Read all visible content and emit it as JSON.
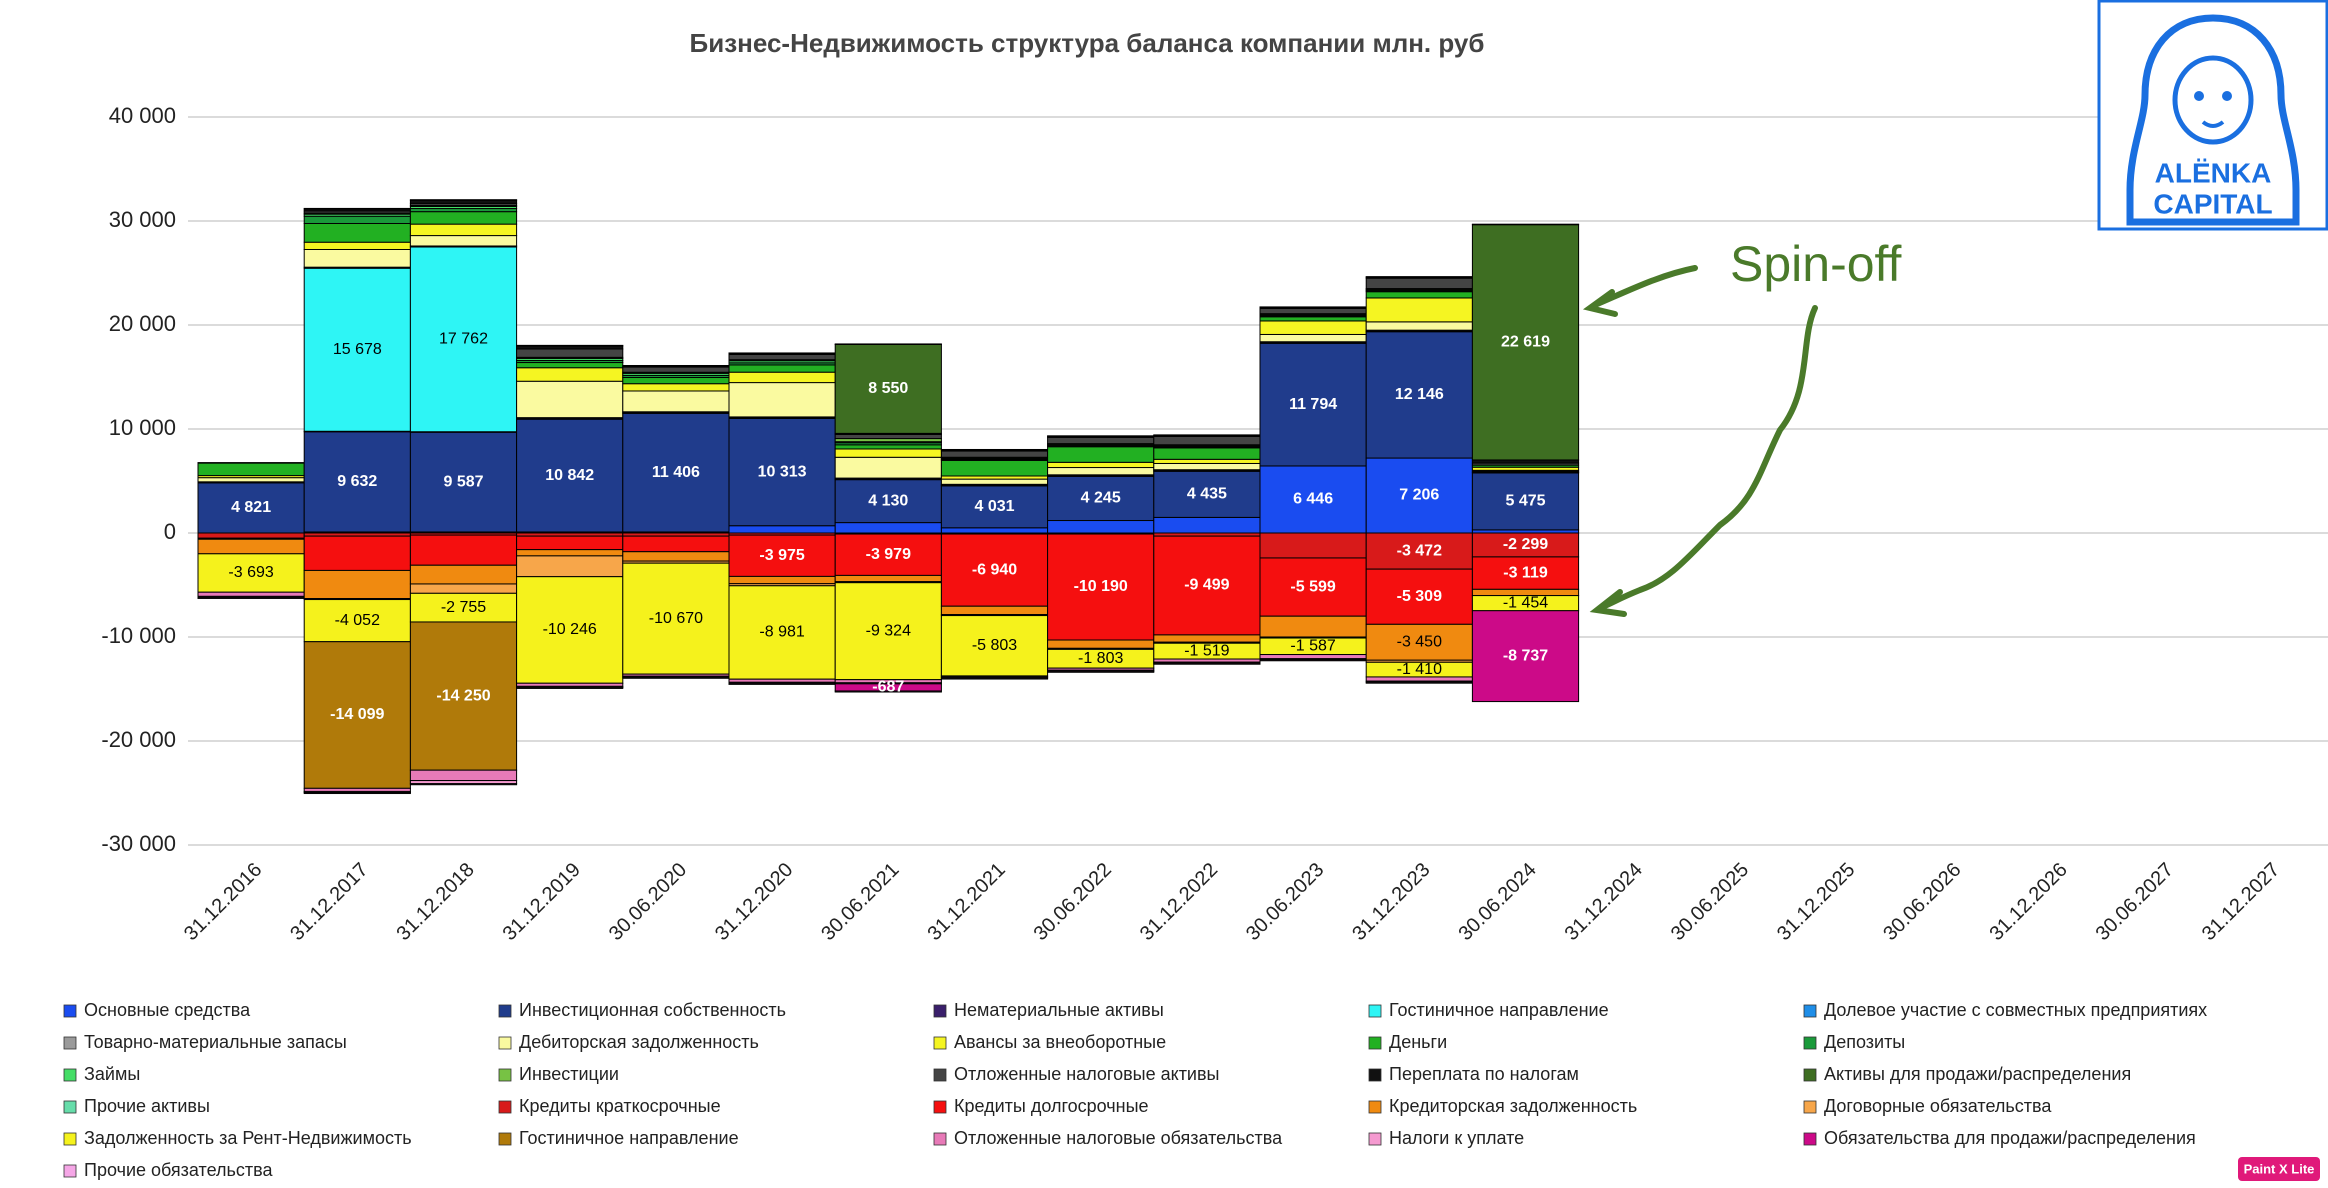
{
  "chart_data": {
    "type": "stacked_bar",
    "title": "Бизнес-Недвижимость структура баланса компании млн. руб",
    "annotations": [
      "Spin-off"
    ],
    "categories": [
      "31.12.2016",
      "31.12.2017",
      "31.12.2018",
      "31.12.2019",
      "30.06.2020",
      "31.12.2020",
      "30.06.2021",
      "31.12.2021",
      "30.06.2022",
      "31.12.2022",
      "30.06.2023",
      "31.12.2023",
      "30.06.2024",
      "31.12.2024",
      "30.06.2025",
      "31.12.2025",
      "30.06.2026",
      "31.12.2026",
      "30.06.2027",
      "31.12.2027"
    ],
    "ylim": [
      -30000,
      40000
    ],
    "yticks": [
      {
        "value": -30000,
        "label": "-30 000"
      },
      {
        "value": -20000,
        "label": "-20 000"
      },
      {
        "value": -10000,
        "label": "-10 000"
      },
      0,
      {
        "value": 10000,
        "label": "10 000"
      },
      {
        "value": 20000,
        "label": "20 000"
      },
      {
        "value": 30000,
        "label": "30 000"
      },
      {
        "value": 40000,
        "label": "40 000"
      }
    ],
    "grid": true,
    "legend": "bottom",
    "series": [
      {
        "name": "Основные средства",
        "color": "#1a4cf0",
        "values": [
          0,
          100,
          100,
          100,
          100,
          700,
          1000,
          500,
          1200,
          1500,
          6446,
          7206,
          300,
          null,
          null,
          null,
          null,
          null,
          null,
          null
        ],
        "value_labels": [
          null,
          null,
          null,
          null,
          null,
          null,
          null,
          null,
          null,
          null,
          "6 446",
          "7 206",
          null,
          null,
          null,
          null,
          null,
          null,
          null,
          null
        ]
      },
      {
        "name": "Инвестиционная собственность",
        "color": "#203c8c",
        "values": [
          4821,
          9632,
          9587,
          10842,
          11406,
          10313,
          4130,
          4031,
          4245,
          4435,
          11794,
          12146,
          5475,
          null,
          null,
          null,
          null,
          null,
          null,
          null
        ],
        "value_labels": [
          "4 821",
          "9 632",
          "9 587",
          "10 842",
          "11 406",
          "10 313",
          "4 130",
          "4 031",
          "4 245",
          "4 435",
          "11 794",
          "12 146",
          "5 475",
          null,
          null,
          null,
          null,
          null,
          null,
          null
        ]
      },
      {
        "name": "Нематериальные активы",
        "color": "#3a1f6b",
        "values": [
          0,
          50,
          50,
          50,
          50,
          50,
          50,
          50,
          50,
          50,
          50,
          50,
          50,
          null,
          null,
          null,
          null,
          null,
          null,
          null
        ]
      },
      {
        "name": "Гостиничное направление",
        "color": "#2ef5f5",
        "values": [
          0,
          15678,
          17762,
          0,
          0,
          0,
          0,
          0,
          0,
          0,
          0,
          0,
          0,
          null,
          null,
          null,
          null,
          null,
          null,
          null
        ],
        "value_labels": [
          null,
          "15 678",
          "17 762",
          null,
          null,
          null,
          null,
          null,
          null,
          null,
          null,
          null,
          null,
          null,
          null,
          null,
          null,
          null,
          null,
          null
        ]
      },
      {
        "name": "Долевое участие с совместных предприятиях",
        "color": "#1f8ee8",
        "values": [
          0,
          0,
          0,
          0,
          0,
          0,
          0,
          0,
          0,
          0,
          0,
          0,
          0,
          null,
          null,
          null,
          null,
          null,
          null,
          null
        ]
      },
      {
        "name": "Товарно-материальные запасы",
        "color": "#9a9a9a",
        "values": [
          100,
          100,
          100,
          100,
          100,
          100,
          100,
          100,
          100,
          100,
          100,
          100,
          100,
          null,
          null,
          null,
          null,
          null,
          null,
          null
        ]
      },
      {
        "name": "Дебиторская задолженность",
        "color": "#fafaa0",
        "values": [
          400,
          1700,
          1000,
          3500,
          2000,
          3300,
          2000,
          500,
          700,
          600,
          700,
          800,
          100,
          null,
          null,
          null,
          null,
          null,
          null,
          null
        ]
      },
      {
        "name": "Авансы за внеоборотные",
        "color": "#f5f522",
        "values": [
          200,
          700,
          1100,
          1300,
          700,
          1000,
          800,
          300,
          500,
          400,
          1300,
          2300,
          300,
          null,
          null,
          null,
          null,
          null,
          null,
          null
        ]
      },
      {
        "name": "Деньги",
        "color": "#22b022",
        "values": [
          1200,
          1800,
          1200,
          500,
          600,
          700,
          400,
          1500,
          1500,
          1100,
          400,
          600,
          200,
          null,
          null,
          null,
          null,
          null,
          null,
          null
        ]
      },
      {
        "name": "Депозиты",
        "color": "#1a9a3a",
        "values": [
          0,
          700,
          300,
          200,
          200,
          200,
          200,
          100,
          100,
          100,
          100,
          100,
          0,
          null,
          null,
          null,
          null,
          null,
          null,
          null
        ]
      },
      {
        "name": "Займы",
        "color": "#44dd66",
        "values": [
          0,
          200,
          200,
          200,
          200,
          200,
          100,
          100,
          100,
          100,
          100,
          100,
          0,
          null,
          null,
          null,
          null,
          null,
          null,
          null
        ]
      },
      {
        "name": "Инвестиции",
        "color": "#77c244",
        "values": [
          0,
          100,
          100,
          100,
          100,
          100,
          300,
          100,
          100,
          100,
          100,
          100,
          0,
          null,
          null,
          null,
          null,
          null,
          null,
          null
        ]
      },
      {
        "name": "Отложенные налоговые активы",
        "color": "#444444",
        "values": [
          0,
          200,
          200,
          800,
          500,
          500,
          400,
          600,
          600,
          800,
          500,
          1000,
          200,
          null,
          null,
          null,
          null,
          null,
          null,
          null
        ]
      },
      {
        "name": "Переплата по налогам",
        "color": "#111111",
        "values": [
          0,
          200,
          300,
          300,
          100,
          100,
          100,
          100,
          100,
          100,
          100,
          100,
          300,
          null,
          null,
          null,
          null,
          null,
          null,
          null
        ]
      },
      {
        "name": "Активы для продажи/распределения",
        "color": "#3e6e22",
        "values": [
          0,
          0,
          0,
          0,
          0,
          0,
          8550,
          0,
          0,
          0,
          0,
          0,
          22619,
          null,
          null,
          null,
          null,
          null,
          null,
          null
        ],
        "value_labels": [
          null,
          null,
          null,
          null,
          null,
          null,
          "8 550",
          null,
          null,
          null,
          null,
          null,
          "22 619",
          null,
          null,
          null,
          null,
          null,
          null,
          null
        ]
      },
      {
        "name": "Прочие активы",
        "color": "#66ddaa",
        "values": [
          50,
          50,
          50,
          50,
          50,
          50,
          50,
          50,
          50,
          50,
          50,
          50,
          50,
          null,
          null,
          null,
          null,
          null,
          null,
          null
        ]
      },
      {
        "name": "Кредиты краткосрочные",
        "color": "#d81a1a",
        "values": [
          -500,
          -300,
          -200,
          -300,
          -300,
          -200,
          -100,
          -100,
          -100,
          -300,
          -2400,
          -3472,
          -2299,
          null,
          null,
          null,
          null,
          null,
          null,
          null
        ],
        "value_labels": [
          null,
          null,
          null,
          null,
          null,
          null,
          null,
          null,
          null,
          null,
          null,
          "-3 472",
          "-2 299",
          null,
          null,
          null,
          null,
          null,
          null,
          null
        ]
      },
      {
        "name": "Кредиты долгосрочные",
        "color": "#f50f0f",
        "values": [
          -100,
          -3300,
          -2900,
          -1300,
          -1500,
          -3975,
          -3979,
          -6940,
          -10190,
          -9499,
          -5599,
          -5309,
          -3119,
          null,
          null,
          null,
          null,
          null,
          null,
          null
        ],
        "value_labels": [
          null,
          null,
          null,
          null,
          null,
          "-3 975",
          "-3 979",
          "-6 940",
          "-10 190",
          "-9 499",
          "-5 599",
          "-5 309",
          "-3 119",
          null,
          null,
          null,
          null,
          null,
          null,
          null
        ]
      },
      {
        "name": "Кредиторская задолженность",
        "color": "#f08a10",
        "values": [
          -1400,
          -2700,
          -1800,
          -600,
          -900,
          -700,
          -600,
          -800,
          -800,
          -700,
          -2000,
          -3450,
          -600,
          null,
          null,
          null,
          null,
          null,
          null,
          null
        ],
        "value_labels": [
          null,
          null,
          null,
          null,
          null,
          null,
          null,
          null,
          null,
          null,
          null,
          "-3 450",
          null,
          null,
          null,
          null,
          null,
          null,
          null,
          null
        ]
      },
      {
        "name": "Договорные обязательства",
        "color": "#f7a64a",
        "values": [
          0,
          -100,
          -900,
          -2000,
          -200,
          -200,
          -100,
          -100,
          -100,
          -100,
          -100,
          -200,
          0,
          null,
          null,
          null,
          null,
          null,
          null,
          null
        ]
      },
      {
        "name": "Задолженность за Рент-Недвижимость",
        "color": "#f5f21c",
        "values": [
          -3693,
          -4052,
          -2755,
          -10246,
          -10670,
          -8981,
          -9324,
          -5803,
          -1803,
          -1519,
          -1587,
          -1410,
          -1454,
          null,
          null,
          null,
          null,
          null,
          null,
          null
        ],
        "value_labels": [
          "-3 693",
          "-4 052",
          "-2 755",
          "-10 246",
          "-10 670",
          "-8 981",
          "-9 324",
          "-5 803",
          "-1 803",
          "-1 519",
          "-1 587",
          "-1 410",
          "-1 454",
          null,
          null,
          null,
          null,
          null,
          null,
          null
        ]
      },
      {
        "name": "Гостиничное направление",
        "color": "#b07a0a",
        "values": [
          0,
          -14099,
          -14250,
          0,
          0,
          0,
          0,
          0,
          0,
          0,
          0,
          0,
          0,
          null,
          null,
          null,
          null,
          null,
          null,
          null
        ],
        "value_labels": [
          null,
          "-14 099",
          "-14 250",
          null,
          null,
          null,
          null,
          null,
          null,
          null,
          null,
          null,
          null,
          null,
          null,
          null,
          null,
          null,
          null,
          null
        ]
      },
      {
        "name": "Отложенные налоговые обязательства",
        "color": "#e87ab8",
        "values": [
          -400,
          -300,
          -1000,
          -300,
          -200,
          -300,
          -300,
          -100,
          -200,
          -300,
          -400,
          -400,
          0,
          null,
          null,
          null,
          null,
          null,
          null,
          null
        ]
      },
      {
        "name": "Налоги к уплате",
        "color": "#f59ad0",
        "values": [
          -100,
          -100,
          -300,
          -100,
          -100,
          -100,
          -100,
          -100,
          -100,
          -100,
          -100,
          -100,
          0,
          null,
          null,
          null,
          null,
          null,
          null,
          null
        ]
      },
      {
        "name": "Обязательства для продажи/распределения",
        "color": "#cc0a88",
        "values": [
          0,
          0,
          0,
          0,
          0,
          0,
          -687,
          0,
          0,
          0,
          0,
          0,
          -8737,
          null,
          null,
          null,
          null,
          null,
          null,
          null
        ],
        "value_labels": [
          null,
          null,
          null,
          null,
          null,
          null,
          "-687",
          null,
          null,
          null,
          null,
          null,
          "-8 737",
          null,
          null,
          null,
          null,
          null,
          null,
          null
        ]
      },
      {
        "name": "Прочие обязательства",
        "color": "#f5a6e6",
        "values": [
          -100,
          -100,
          -100,
          -100,
          -100,
          -100,
          -100,
          -100,
          -100,
          -100,
          -100,
          -100,
          0,
          null,
          null,
          null,
          null,
          null,
          null,
          null
        ]
      }
    ]
  },
  "logo": {
    "line1": "ALËNKA",
    "line2": "CAPITAL"
  },
  "badge": "Paint X Lite"
}
